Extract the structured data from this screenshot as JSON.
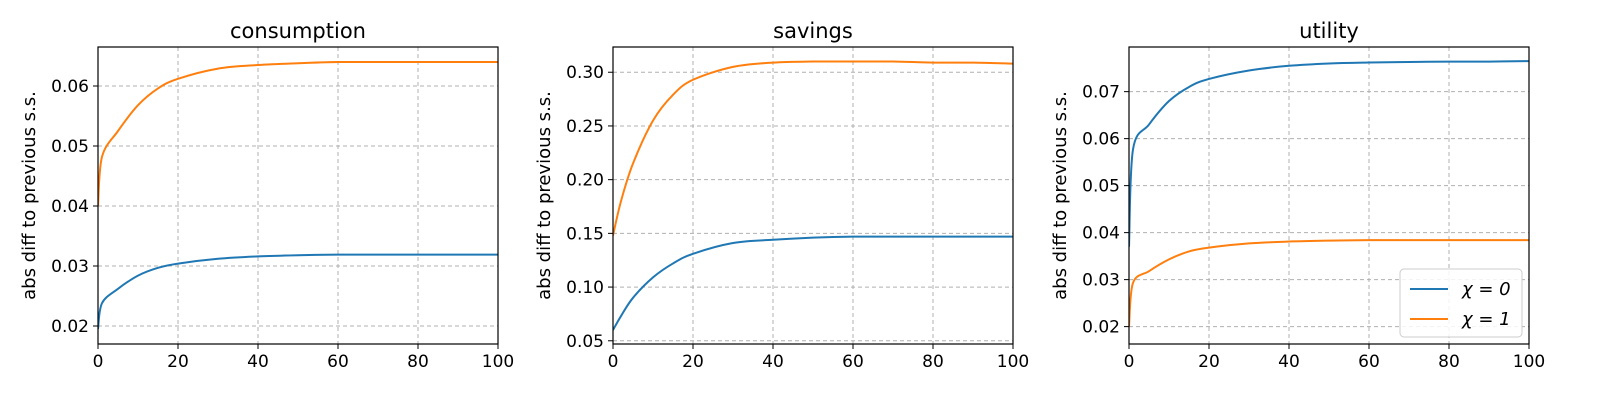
{
  "figure": {
    "colors": {
      "chi0": "#1f77b4",
      "chi1": "#ff7f0e",
      "grid": "#b0b0b0",
      "axes": "#000000"
    },
    "legend": {
      "placement": "lower-right",
      "entries": [
        "χ = 0",
        "χ = 1"
      ]
    }
  },
  "chart_data": [
    {
      "type": "line",
      "title": "consumption",
      "xlabel": "",
      "ylabel": "abs diff to previous s.s.",
      "xlim": [
        0,
        100
      ],
      "ylim": [
        0.017,
        0.0665
      ],
      "xticks": [
        0,
        20,
        40,
        60,
        80,
        100
      ],
      "yticks": [
        0.02,
        0.03,
        0.04,
        0.05,
        0.06
      ],
      "ytick_labels": [
        "0.02",
        "0.03",
        "0.04",
        "0.05",
        "0.06"
      ],
      "grid": true,
      "series": [
        {
          "name": "χ = 0",
          "color": "#1f77b4",
          "x": [
            0,
            1,
            5,
            10,
            15,
            20,
            30,
            40,
            50,
            60,
            70,
            80,
            90,
            100
          ],
          "y": [
            0.0195,
            0.0238,
            0.0262,
            0.0284,
            0.0297,
            0.0304,
            0.0312,
            0.0316,
            0.0318,
            0.0319,
            0.0319,
            0.0319,
            0.0319,
            0.0319
          ]
        },
        {
          "name": "χ = 1",
          "color": "#ff7f0e",
          "x": [
            0,
            1,
            5,
            10,
            15,
            20,
            30,
            40,
            50,
            60,
            70,
            80,
            90,
            100
          ],
          "y": [
            0.04,
            0.0482,
            0.0525,
            0.0568,
            0.0596,
            0.0612,
            0.0629,
            0.0635,
            0.0638,
            0.064,
            0.064,
            0.064,
            0.064,
            0.064
          ]
        }
      ]
    },
    {
      "type": "line",
      "title": "savings",
      "xlabel": "",
      "ylabel": "abs diff to previous s.s.",
      "xlim": [
        0,
        100
      ],
      "ylim": [
        0.047,
        0.3235
      ],
      "xticks": [
        0,
        20,
        40,
        60,
        80,
        100
      ],
      "yticks": [
        0.05,
        0.1,
        0.15,
        0.2,
        0.25,
        0.3
      ],
      "ytick_labels": [
        "0.05",
        "0.10",
        "0.15",
        "0.20",
        "0.25",
        "0.30"
      ],
      "grid": true,
      "series": [
        {
          "name": "χ = 0",
          "color": "#1f77b4",
          "x": [
            0,
            2,
            5,
            10,
            15,
            20,
            30,
            40,
            50,
            60,
            70,
            80,
            90,
            100
          ],
          "y": [
            0.06,
            0.073,
            0.09,
            0.109,
            0.122,
            0.131,
            0.141,
            0.144,
            0.146,
            0.147,
            0.147,
            0.147,
            0.147,
            0.147
          ]
        },
        {
          "name": "χ = 1",
          "color": "#ff7f0e",
          "x": [
            0,
            2,
            5,
            10,
            15,
            20,
            30,
            40,
            50,
            60,
            70,
            80,
            90,
            100
          ],
          "y": [
            0.148,
            0.18,
            0.215,
            0.255,
            0.279,
            0.293,
            0.305,
            0.309,
            0.31,
            0.31,
            0.31,
            0.309,
            0.309,
            0.308
          ]
        }
      ]
    },
    {
      "type": "line",
      "title": "utility",
      "xlabel": "",
      "ylabel": "abs diff to previous s.s.",
      "xlim": [
        0,
        100
      ],
      "ylim": [
        0.0163,
        0.0795
      ],
      "xticks": [
        0,
        20,
        40,
        60,
        80,
        100
      ],
      "yticks": [
        0.02,
        0.03,
        0.04,
        0.05,
        0.06,
        0.07
      ],
      "ytick_labels": [
        "0.02",
        "0.03",
        "0.04",
        "0.05",
        "0.06",
        "0.07"
      ],
      "grid": true,
      "legend": true,
      "series": [
        {
          "name": "χ = 0",
          "color": "#1f77b4",
          "x": [
            0,
            1,
            5,
            10,
            15,
            20,
            30,
            40,
            50,
            60,
            70,
            80,
            90,
            100
          ],
          "y": [
            0.037,
            0.0577,
            0.063,
            0.068,
            0.071,
            0.0727,
            0.0745,
            0.0755,
            0.076,
            0.0762,
            0.0763,
            0.0764,
            0.0764,
            0.0765
          ]
        },
        {
          "name": "χ = 1",
          "color": "#ff7f0e",
          "x": [
            0,
            1,
            5,
            10,
            15,
            20,
            30,
            40,
            50,
            60,
            70,
            80,
            90,
            100
          ],
          "y": [
            0.02,
            0.0293,
            0.0318,
            0.0343,
            0.036,
            0.0368,
            0.0377,
            0.0381,
            0.0383,
            0.0384,
            0.0384,
            0.0384,
            0.0384,
            0.0384
          ]
        }
      ]
    }
  ]
}
